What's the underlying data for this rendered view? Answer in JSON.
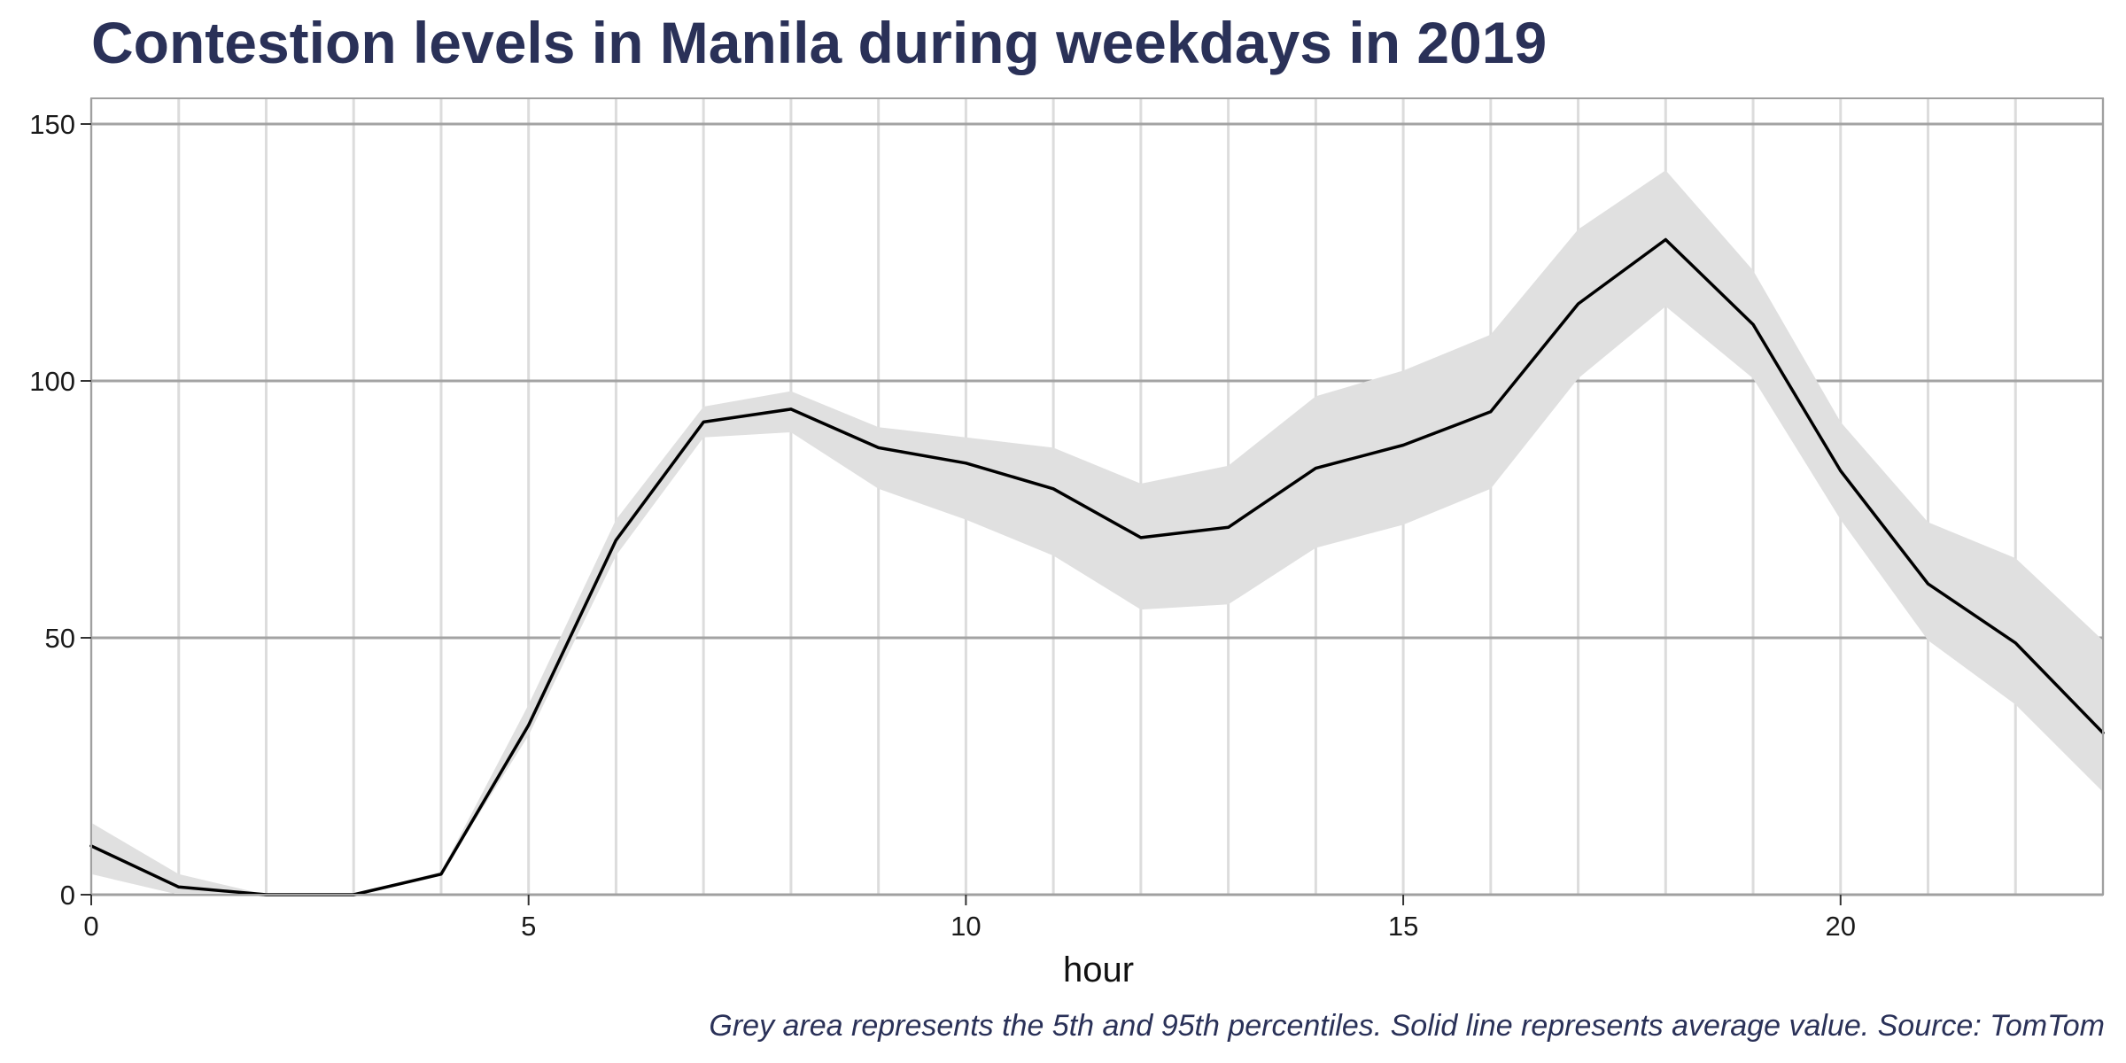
{
  "chart_data": {
    "type": "line",
    "title": "Contestion levels in Manila during weekdays in 2019",
    "xlabel": "hour",
    "ylabel": "",
    "caption": "Grey area represents the 5th and 95th percentiles. Solid line represents average value. Source: TomTom",
    "x": [
      0,
      1,
      2,
      3,
      4,
      5,
      6,
      7,
      8,
      9,
      10,
      11,
      12,
      13,
      14,
      15,
      16,
      17,
      18,
      19,
      20,
      21,
      22,
      23
    ],
    "series": [
      {
        "values": [
          9.5,
          1.5,
          0,
          0,
          4,
          33,
          69,
          92,
          94.5,
          87,
          84,
          79,
          69.5,
          71.5,
          83,
          87.5,
          94,
          115,
          127.5,
          111,
          82.5,
          60.5,
          49,
          31.5
        ]
      }
    ],
    "band": {
      "lower": [
        4,
        0,
        0,
        0,
        4,
        31,
        66,
        89,
        90,
        79,
        73,
        66,
        55.5,
        56.5,
        67.5,
        72,
        79,
        100.5,
        114.5,
        100.5,
        73,
        49.5,
        37,
        20
      ],
      "upper": [
        14,
        4,
        0,
        0,
        4.5,
        37,
        73,
        95,
        98,
        91,
        89,
        87,
        80,
        83.5,
        97,
        102,
        109,
        129.5,
        141,
        121.5,
        92,
        72.5,
        65.5,
        49.5
      ]
    },
    "xlim": [
      0,
      23
    ],
    "ylim": [
      0,
      155
    ],
    "x_ticks": [
      0,
      5,
      10,
      15,
      20
    ],
    "y_ticks": [
      0,
      50,
      100,
      150
    ],
    "grid": true,
    "colors": {
      "band": "#e0e0e0",
      "line": "#000000",
      "major_grid": "#a3a3a3",
      "minor_grid": "#dcdcdc",
      "panel_border": "#a0a0a0",
      "title": "#2a3158"
    }
  }
}
